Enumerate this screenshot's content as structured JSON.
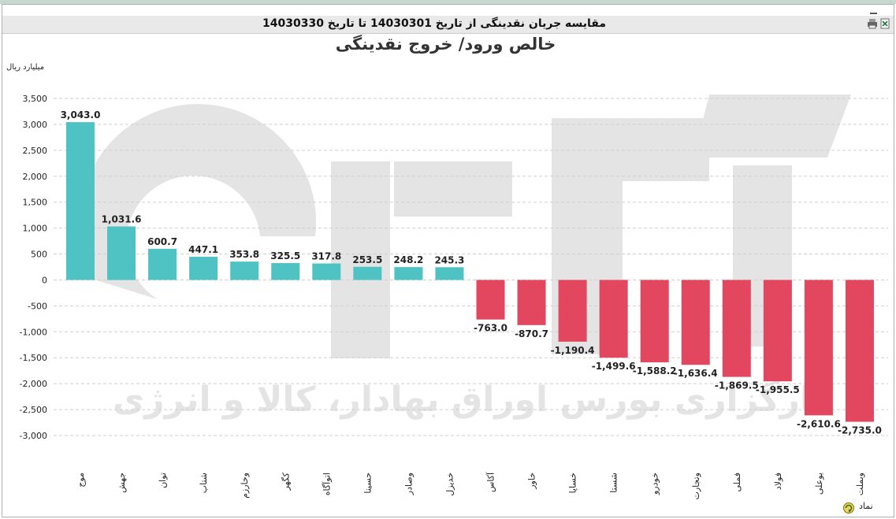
{
  "window": {
    "title": "مقایسه جریان نقدینگی از تاریخ 14030301 تا تاریخ 14030330"
  },
  "icons": [
    "minimize-icon",
    "print-icon",
    "export-excel-icon",
    "refresh-icon"
  ],
  "footer": {
    "axis_label": "نماد"
  },
  "chart_data": {
    "type": "bar",
    "title": "خالص ورود/ خروج نقدینگی",
    "ylabel": "میلیارد ریال",
    "xlabel": "نماد",
    "ylim": [
      -3000,
      3500
    ],
    "yticks": [
      3500,
      3000,
      2500,
      2000,
      1500,
      1000,
      500,
      0,
      -500,
      -1000,
      -1500,
      -2000,
      -2500,
      -3000
    ],
    "grid": true,
    "legend": "none",
    "colors": {
      "positive": "#4fc3c4",
      "negative": "#e2475f"
    },
    "watermark": "کارگزاری بورس اوراق بهادار، کالا و انرژی",
    "categories": [
      "موج",
      "جهش",
      "توان",
      "شتاب",
      "وخارزم",
      "کگهر",
      "اتوآگاه",
      "حسینا",
      "وصادر",
      "خدیزل",
      "آکاس",
      "خاور",
      "خساپا",
      "شستا",
      "خودرو",
      "وتجارت",
      "فملی",
      "فولاد",
      "یوعلی",
      "وبملت"
    ],
    "values": [
      3043.0,
      1031.6,
      600.7,
      447.1,
      353.8,
      325.5,
      317.8,
      253.5,
      248.2,
      245.3,
      -763.0,
      -870.7,
      -1190.4,
      -1499.6,
      -1588.2,
      -1636.4,
      -1869.5,
      -1955.5,
      -2610.6,
      -2735.0
    ],
    "value_labels": [
      "3,043.0",
      "1,031.6",
      "600.7",
      "447.1",
      "353.8",
      "325.5",
      "317.8",
      "253.5",
      "248.2",
      "245.3",
      "-763.0",
      "-870.7",
      "-1,190.4",
      "-1,499.6",
      "-1,588.2",
      "-1,636.4",
      "-1,869.5",
      "-1,955.5",
      "-2,610.6",
      "-2,735.0"
    ],
    "ytick_labels": [
      "3,500",
      "3,000",
      "2,500",
      "2,000",
      "1,500",
      "1,000",
      "500",
      "0",
      "-500",
      "-1,000",
      "-1,500",
      "-2,000",
      "-2,500",
      "-3,000"
    ]
  }
}
